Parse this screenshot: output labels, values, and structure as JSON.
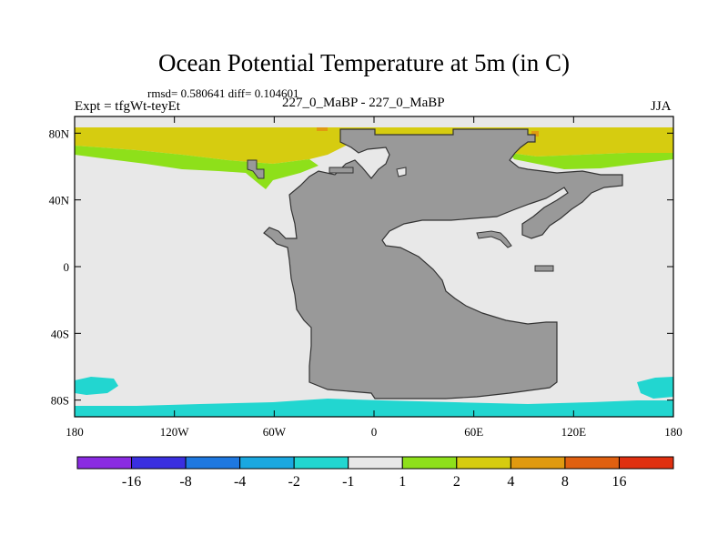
{
  "title": "Ocean Potential Temperature at 5m (in C)",
  "stats_text": "rmsd= 0.580641 diff= 0.104601",
  "expt_label": "Expt = tfgWt-teyEt",
  "center_label": "227_0_MaBP - 227_0_MaBP",
  "season_label": "JJA",
  "map_data": {
    "x_ticks": [
      "180",
      "120W",
      "60W",
      "0",
      "60E",
      "120E",
      "180"
    ],
    "y_ticks": [
      "80N",
      "40N",
      "0",
      "40S",
      "80S"
    ],
    "colorbar": {
      "colors": [
        "#8a2be2",
        "#3a2fe0",
        "#1e78e0",
        "#1aa8e0",
        "#22d6d0",
        "#e8e8e8",
        "#8ee01a",
        "#d6cc10",
        "#e09a10",
        "#e06010",
        "#e03010"
      ],
      "labels": [
        "-16",
        "-8",
        "-4",
        "-2",
        "-1",
        "1",
        "2",
        "4",
        "8",
        "16"
      ]
    },
    "colors": {
      "background": "#e8e8e8",
      "land": "#999999",
      "positive_2_to_4": "#d6cc10",
      "positive_1_to_2": "#8ee01a",
      "negative_1_to_2": "#22d6d0",
      "positive_4_to_8": "#e09a10"
    }
  }
}
